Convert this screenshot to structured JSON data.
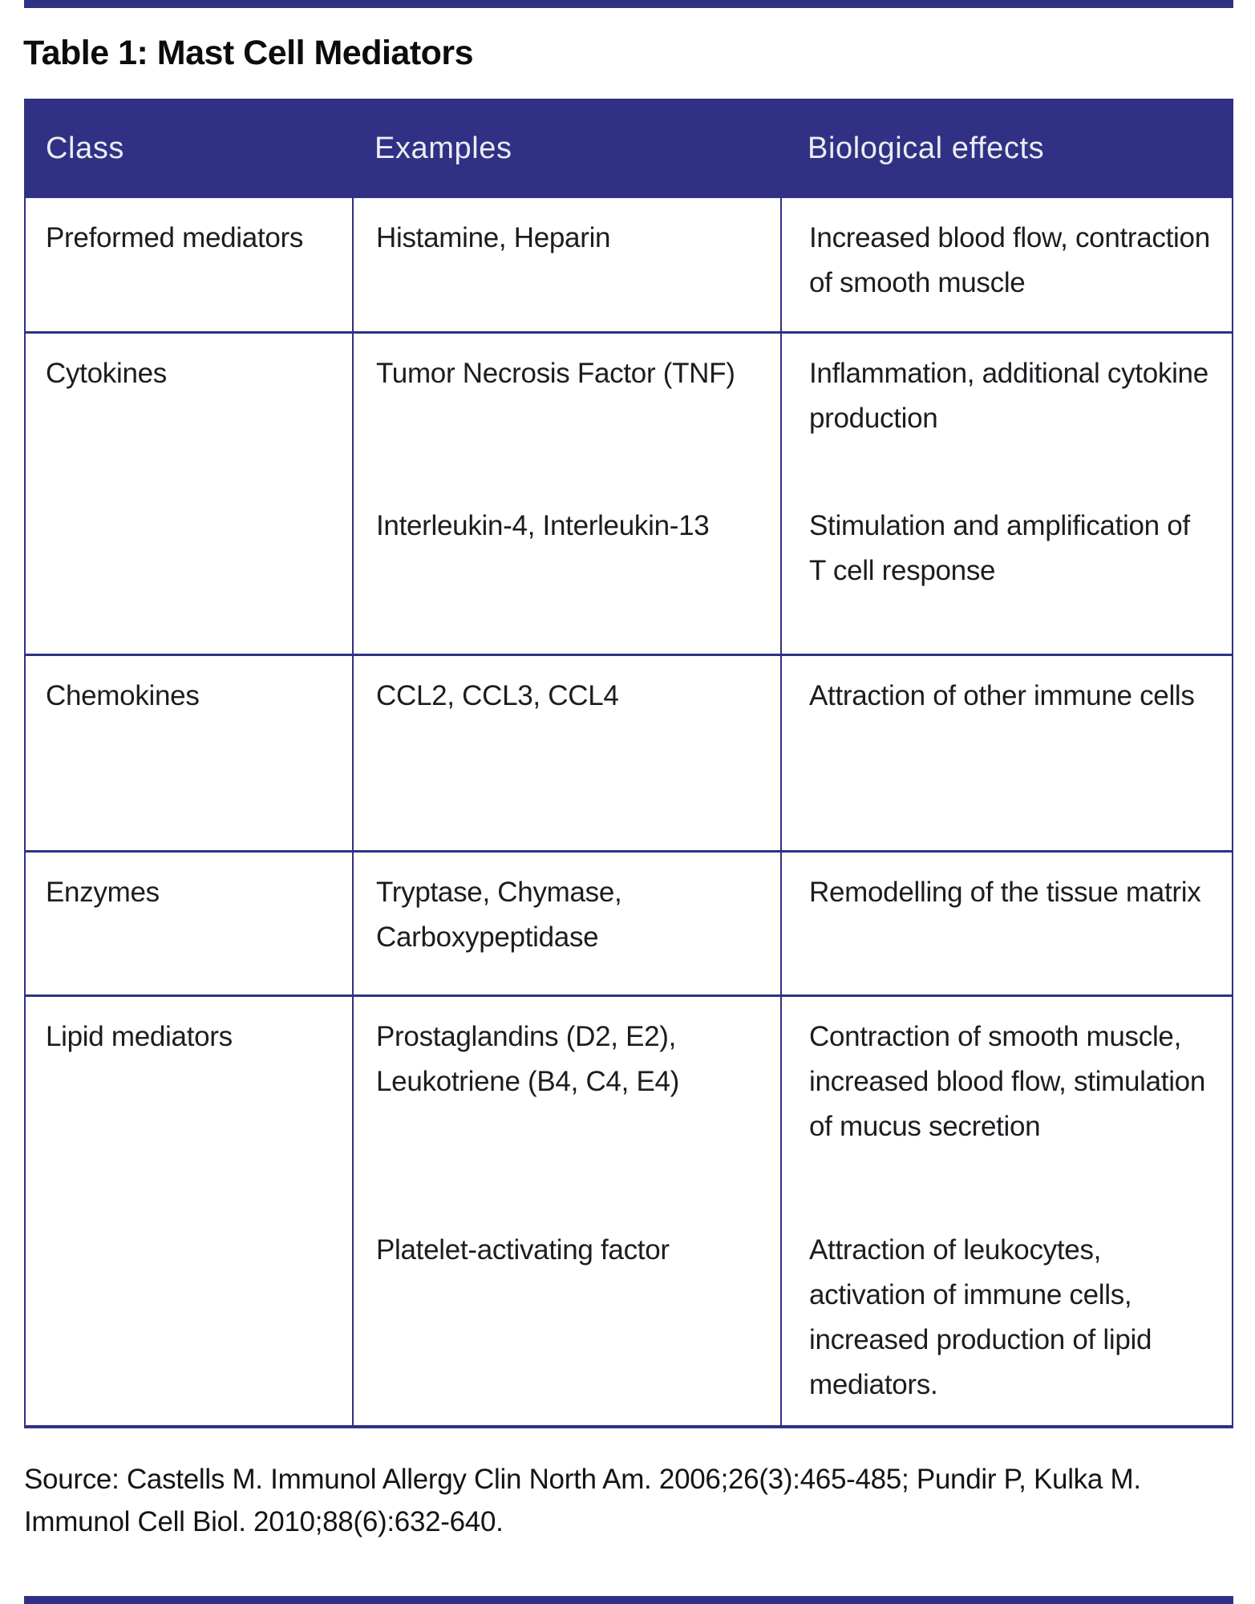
{
  "title": "Table 1: Mast Cell Mediators",
  "columns": [
    "Class",
    "Examples",
    "Biological effects"
  ],
  "rows": [
    {
      "class": "Preformed mediators",
      "blocks": [
        {
          "examples": "Histamine, Heparin",
          "effects": "Increased blood flow, contraction of smooth muscle"
        }
      ]
    },
    {
      "class": "Cytokines",
      "blocks": [
        {
          "examples": "Tumor Necrosis Factor (TNF)",
          "effects": "Inflammation, additional cytokine production"
        },
        {
          "examples": "Interleukin-4, Interleukin-13",
          "effects": "Stimulation and amplification of T cell response"
        }
      ]
    },
    {
      "class": "Chemokines",
      "blocks": [
        {
          "examples": "CCL2, CCL3, CCL4",
          "effects": "Attraction of other immune cells"
        }
      ]
    },
    {
      "class": "Enzymes",
      "blocks": [
        {
          "examples": "Tryptase, Chymase, Carboxypeptidase",
          "effects": "Remodelling of the tissue matrix"
        }
      ]
    },
    {
      "class": "Lipid mediators",
      "blocks": [
        {
          "examples": "Prostaglandins (D2, E2), Leukotriene (B4, C4, E4)",
          "effects": "Contraction of smooth muscle, increased blood flow, stimulation of mucus secretion"
        },
        {
          "examples": "Platelet-activating factor",
          "effects": "Attraction of leukocytes, activation of immune cells, increased production of lipid mediators."
        }
      ]
    }
  ],
  "source": "Source: Castells M. Immunol Allergy Clin North Am. 2006;26(3):465-485; Pundir P, Kulka M. Immunol Cell Biol. 2010;88(6):632-640.",
  "colors": {
    "accent_navy": "#303184",
    "header_text": "#ececf2",
    "body_text": "#1c1c21",
    "background": "#ffffff"
  }
}
